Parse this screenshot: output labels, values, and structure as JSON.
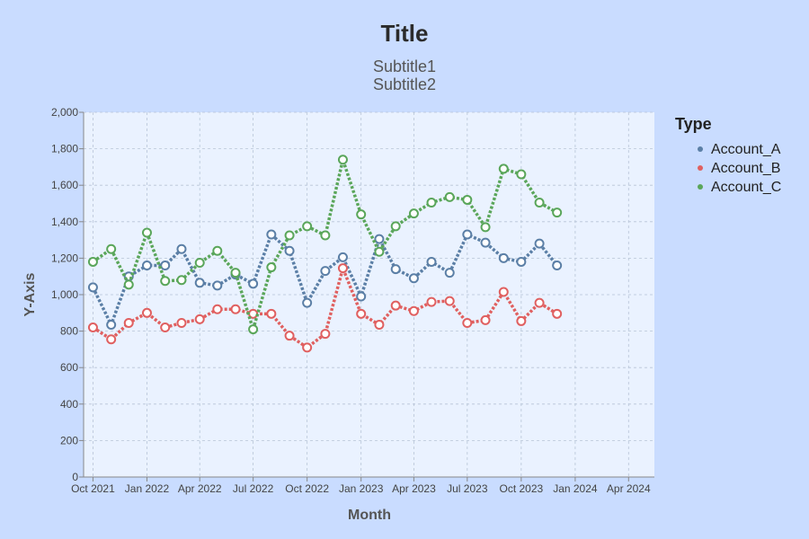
{
  "colors": {
    "background": "#c9dcff",
    "plot_background": "#eaf2ff"
  },
  "chart_data": {
    "type": "line",
    "title": "Title",
    "subtitle": [
      "Subtitle1",
      "Subtitle2"
    ],
    "xlabel": "Month",
    "ylabel": "Y-Axis",
    "xlim": [
      "2021-09-15",
      "2024-05-15"
    ],
    "ylim": [
      0,
      2000
    ],
    "x_ticks": [
      {
        "date": "2021-10-01",
        "label": "Oct 2021"
      },
      {
        "date": "2022-01-01",
        "label": "Jan 2022"
      },
      {
        "date": "2022-04-01",
        "label": "Apr 2022"
      },
      {
        "date": "2022-07-01",
        "label": "Jul 2022"
      },
      {
        "date": "2022-10-01",
        "label": "Oct 2022"
      },
      {
        "date": "2023-01-01",
        "label": "Jan 2023"
      },
      {
        "date": "2023-04-01",
        "label": "Apr 2023"
      },
      {
        "date": "2023-07-01",
        "label": "Jul 2023"
      },
      {
        "date": "2023-10-01",
        "label": "Oct 2023"
      },
      {
        "date": "2024-01-01",
        "label": "Jan 2024"
      },
      {
        "date": "2024-04-01",
        "label": "Apr 2024"
      }
    ],
    "y_ticks": [
      {
        "value": 0,
        "label": "0"
      },
      {
        "value": 200,
        "label": "200"
      },
      {
        "value": 400,
        "label": "400"
      },
      {
        "value": 600,
        "label": "600"
      },
      {
        "value": 800,
        "label": "800"
      },
      {
        "value": 1000,
        "label": "1,000"
      },
      {
        "value": 1200,
        "label": "1,200"
      },
      {
        "value": 1400,
        "label": "1,400"
      },
      {
        "value": 1600,
        "label": "1,600"
      },
      {
        "value": 1800,
        "label": "1,800"
      },
      {
        "value": 2000,
        "label": "2,000"
      }
    ],
    "grid": true,
    "legend": {
      "title": "Type",
      "position": "right"
    },
    "x": [
      "2021-10-01",
      "2021-11-01",
      "2021-12-01",
      "2022-01-01",
      "2022-02-01",
      "2022-03-01",
      "2022-04-01",
      "2022-05-01",
      "2022-06-01",
      "2022-07-01",
      "2022-08-01",
      "2022-09-01",
      "2022-10-01",
      "2022-11-01",
      "2022-12-01",
      "2023-01-01",
      "2023-02-01",
      "2023-03-01",
      "2023-04-01",
      "2023-05-01",
      "2023-06-01",
      "2023-07-01",
      "2023-08-01",
      "2023-09-01",
      "2023-10-01",
      "2023-11-01",
      "2023-12-01"
    ],
    "series": [
      {
        "name": "Account_A",
        "color": "#5b7fa6",
        "values": [
          1040,
          835,
          1100,
          1160,
          1160,
          1250,
          1065,
          1050,
          1110,
          1060,
          1330,
          1240,
          955,
          1130,
          1205,
          990,
          1305,
          1140,
          1090,
          1180,
          1120,
          1330,
          1285,
          1200,
          1180,
          1280,
          1160
        ]
      },
      {
        "name": "Account_B",
        "color": "#e06060",
        "values": [
          820,
          755,
          845,
          900,
          820,
          845,
          865,
          920,
          920,
          895,
          895,
          775,
          710,
          785,
          1145,
          895,
          835,
          940,
          910,
          960,
          965,
          845,
          860,
          1015,
          855,
          955,
          895
        ]
      },
      {
        "name": "Account_C",
        "color": "#5aa65a",
        "values": [
          1180,
          1250,
          1055,
          1340,
          1075,
          1080,
          1175,
          1240,
          1120,
          810,
          1150,
          1325,
          1375,
          1325,
          1740,
          1440,
          1235,
          1375,
          1445,
          1505,
          1535,
          1520,
          1370,
          1690,
          1660,
          1505,
          1450
        ]
      }
    ]
  }
}
